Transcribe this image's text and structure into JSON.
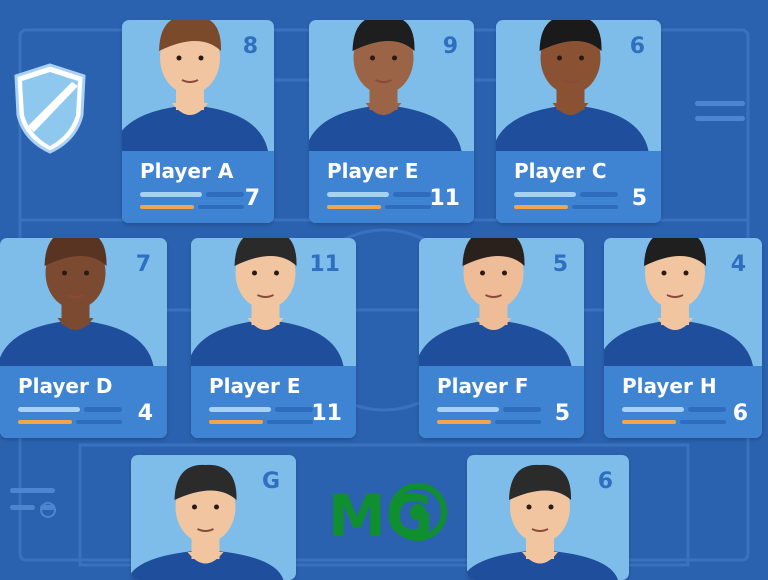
{
  "players": [
    {
      "name": "Player A",
      "number": "8",
      "value": "7",
      "skin": "#f0c5a0",
      "hair": "#7a4a2a"
    },
    {
      "name": "Player E",
      "number": "9",
      "value": "11",
      "skin": "#9b6447",
      "hair": "#1e1e1e"
    },
    {
      "name": "Player C",
      "number": "6",
      "value": "5",
      "skin": "#8a5233",
      "hair": "#1a1a1a"
    },
    {
      "name": "Player D",
      "number": "7",
      "value": "4",
      "skin": "#7c4a30",
      "hair": "#5a3422"
    },
    {
      "name": "Player E",
      "number": "11",
      "value": "11",
      "skin": "#f0c5a0",
      "hair": "#2a2a2a"
    },
    {
      "name": "Player F",
      "number": "5",
      "value": "5",
      "skin": "#eebd98",
      "hair": "#2a211c"
    },
    {
      "name": "Player H",
      "number": "4",
      "value": "6",
      "skin": "#f0c5a0",
      "hair": "#1f1f1f"
    },
    {
      "name": "",
      "number": "G",
      "value": "",
      "skin": "#f0c5a0",
      "hair": "#2b2b2b"
    },
    {
      "name": "",
      "number": "6",
      "value": "",
      "skin": "#f0c5a0",
      "hair": "#2b2b2b"
    }
  ],
  "logo_text": "MG",
  "colors": {
    "background": "#2b62b0",
    "card": "#7ebdea",
    "plate": "#3f84d2",
    "accent": "#f0a54b",
    "logo": "#0f8f2f"
  }
}
